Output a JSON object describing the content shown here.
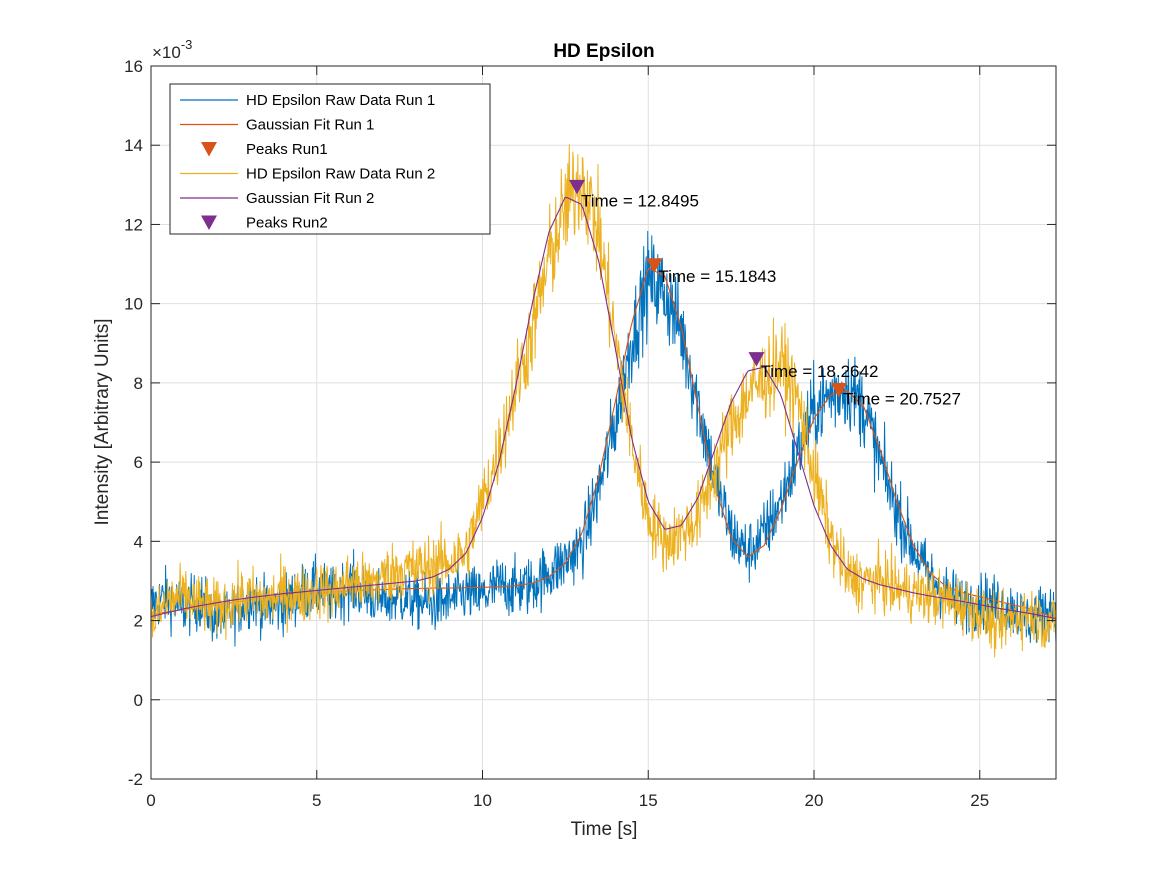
{
  "chart_data": {
    "type": "line",
    "title": "HD Epsilon",
    "xlabel": "Time [s]",
    "ylabel": "Intensity [Arbitrary Units]",
    "y_exponent": "×10",
    "y_exponent_power": "-3",
    "xlim": [
      0,
      27.3
    ],
    "ylim": [
      -2,
      16
    ],
    "xticks": [
      0,
      5,
      10,
      15,
      20,
      25
    ],
    "yticks": [
      -2,
      0,
      2,
      4,
      6,
      8,
      10,
      12,
      14,
      16
    ],
    "xtick_labels": [
      "0",
      "5",
      "10",
      "15",
      "20",
      "25"
    ],
    "ytick_labels": [
      "-2",
      "0",
      "2",
      "4",
      "6",
      "8",
      "10",
      "12",
      "14",
      "16"
    ],
    "grid": true,
    "legend_position": "top-left",
    "series": [
      {
        "name": "HD Epsilon Raw Data Run 1",
        "kind": "line",
        "color": "#0072BD",
        "x": [
          0,
          0.5,
          1,
          1.5,
          2,
          2.5,
          3,
          3.5,
          4,
          4.5,
          5,
          5.5,
          6,
          6.5,
          7,
          7.5,
          8,
          8.5,
          9,
          9.5,
          10,
          10.5,
          11,
          11.5,
          12,
          12.5,
          13,
          13.5,
          14,
          14.5,
          15,
          15.5,
          16,
          16.5,
          17,
          17.5,
          18,
          18.5,
          19,
          19.5,
          20,
          20.5,
          21,
          21.5,
          22,
          22.5,
          23,
          23.5,
          24,
          24.5,
          25,
          25.5,
          26,
          26.5,
          27,
          27.3
        ],
        "y": [
          2.4,
          2.6,
          2.3,
          2.5,
          2.0,
          2.2,
          2.6,
          2.3,
          2.4,
          2.7,
          2.8,
          2.6,
          2.9,
          2.7,
          2.5,
          2.6,
          2.5,
          2.4,
          2.5,
          2.7,
          2.6,
          2.9,
          2.8,
          2.9,
          3.2,
          3.5,
          3.9,
          5.3,
          7.0,
          9.1,
          10.6,
          10.3,
          9.3,
          7.5,
          5.6,
          4.2,
          3.7,
          4.2,
          5.0,
          6.2,
          7.3,
          7.7,
          7.9,
          7.4,
          6.0,
          4.8,
          3.8,
          3.1,
          2.7,
          2.4,
          2.5,
          2.4,
          2.3,
          2.0,
          2.3,
          2.3
        ]
      },
      {
        "name": "Gaussian Fit Run 1",
        "kind": "line",
        "color": "#D95319",
        "x": [
          0,
          0.5,
          1,
          1.5,
          2,
          2.5,
          3,
          3.5,
          4,
          4.5,
          5,
          5.5,
          6,
          6.5,
          7,
          7.5,
          8,
          8.5,
          9,
          9.5,
          10,
          10.5,
          11,
          11.5,
          12,
          12.5,
          13,
          13.5,
          14,
          14.5,
          15,
          15.5,
          16,
          16.5,
          17,
          17.5,
          18,
          18.5,
          19,
          19.5,
          20,
          20.5,
          21,
          21.5,
          22,
          22.5,
          23,
          23.5,
          24,
          24.5,
          25,
          25.5,
          26,
          26.5,
          27,
          27.3
        ],
        "y": [
          2.15,
          2.22,
          2.28,
          2.34,
          2.4,
          2.46,
          2.52,
          2.57,
          2.62,
          2.66,
          2.69,
          2.72,
          2.75,
          2.77,
          2.78,
          2.8,
          2.81,
          2.82,
          2.82,
          2.83,
          2.84,
          2.85,
          2.88,
          2.94,
          3.1,
          3.45,
          4.2,
          5.6,
          7.5,
          9.5,
          10.9,
          10.7,
          9.4,
          7.4,
          5.4,
          4.1,
          3.6,
          3.9,
          4.8,
          6.0,
          7.1,
          7.7,
          7.8,
          7.4,
          6.3,
          5.0,
          3.9,
          3.2,
          2.85,
          2.7,
          2.6,
          2.5,
          2.4,
          2.3,
          2.15,
          2.05
        ]
      },
      {
        "name": "Peaks Run1",
        "kind": "marker",
        "marker": "triangle-down",
        "color": "#D95319",
        "x": [
          15.1843,
          20.7527
        ],
        "y": [
          10.97,
          7.82
        ]
      },
      {
        "name": "HD Epsilon Raw Data Run 2",
        "kind": "line",
        "color": "#EDB120",
        "x": [
          0,
          0.5,
          1,
          1.5,
          2,
          2.5,
          3,
          3.5,
          4,
          4.5,
          5,
          5.5,
          6,
          6.5,
          7,
          7.5,
          8,
          8.5,
          9,
          9.5,
          10,
          10.5,
          11,
          11.5,
          12,
          12.5,
          13,
          13.5,
          14,
          14.5,
          15,
          15.5,
          16,
          16.5,
          17,
          17.5,
          18,
          18.5,
          19,
          19.5,
          20,
          20.5,
          21,
          21.5,
          22,
          22.5,
          23,
          23.5,
          24,
          24.5,
          25,
          25.5,
          26,
          26.5,
          27,
          27.3
        ],
        "y": [
          1.9,
          2.5,
          2.6,
          2.4,
          2.3,
          2.5,
          2.6,
          2.5,
          2.7,
          2.6,
          2.8,
          2.7,
          3.0,
          2.9,
          3.1,
          3.3,
          3.3,
          3.4,
          3.5,
          3.7,
          5.0,
          6.3,
          7.9,
          9.3,
          11.1,
          12.4,
          13.2,
          11.8,
          9.1,
          6.5,
          4.6,
          4.0,
          4.2,
          4.6,
          5.8,
          6.9,
          7.7,
          8.1,
          8.5,
          7.6,
          5.7,
          4.1,
          3.1,
          3.0,
          3.0,
          2.8,
          2.7,
          2.6,
          2.5,
          2.4,
          2.2,
          1.8,
          2.1,
          2.2,
          1.9,
          2.0
        ]
      },
      {
        "name": "Gaussian Fit Run 2",
        "kind": "line",
        "color": "#7E2F8E",
        "x": [
          0,
          0.5,
          1,
          1.5,
          2,
          2.5,
          3,
          3.5,
          4,
          4.5,
          5,
          5.5,
          6,
          6.5,
          7,
          7.5,
          8,
          8.5,
          9,
          9.5,
          10,
          10.5,
          11,
          11.5,
          12,
          12.5,
          13,
          13.5,
          14,
          14.5,
          15,
          15.5,
          16,
          16.5,
          17,
          17.5,
          18,
          18.5,
          19,
          19.5,
          20,
          20.5,
          21,
          21.5,
          22,
          22.5,
          23,
          23.5,
          24,
          24.5,
          25,
          25.5,
          26,
          26.5,
          27,
          27.3
        ],
        "y": [
          2.1,
          2.2,
          2.3,
          2.38,
          2.45,
          2.52,
          2.58,
          2.63,
          2.68,
          2.72,
          2.76,
          2.8,
          2.84,
          2.88,
          2.92,
          2.96,
          3.0,
          3.1,
          3.3,
          3.7,
          4.6,
          6.0,
          7.9,
          10.0,
          11.8,
          12.7,
          12.5,
          11.1,
          8.9,
          6.6,
          5.0,
          4.3,
          4.4,
          5.1,
          6.3,
          7.5,
          8.3,
          8.4,
          7.7,
          6.3,
          4.9,
          3.9,
          3.3,
          3.05,
          2.9,
          2.8,
          2.7,
          2.62,
          2.55,
          2.48,
          2.4,
          2.32,
          2.25,
          2.18,
          2.1,
          2.05
        ]
      },
      {
        "name": "Peaks Run2",
        "kind": "marker",
        "marker": "triangle-down",
        "color": "#7E2F8E",
        "x": [
          12.8495,
          18.2642
        ],
        "y": [
          12.95,
          8.6
        ]
      }
    ],
    "annotations": [
      {
        "text": "Time = 12.8495",
        "x": 12.8495,
        "y": 12.6
      },
      {
        "text": "Time = 15.1843",
        "x": 15.1843,
        "y": 10.7
      },
      {
        "text": "Time = 18.2642",
        "x": 18.2642,
        "y": 8.3
      },
      {
        "text": "Time = 20.7527",
        "x": 20.7527,
        "y": 7.6
      }
    ]
  }
}
